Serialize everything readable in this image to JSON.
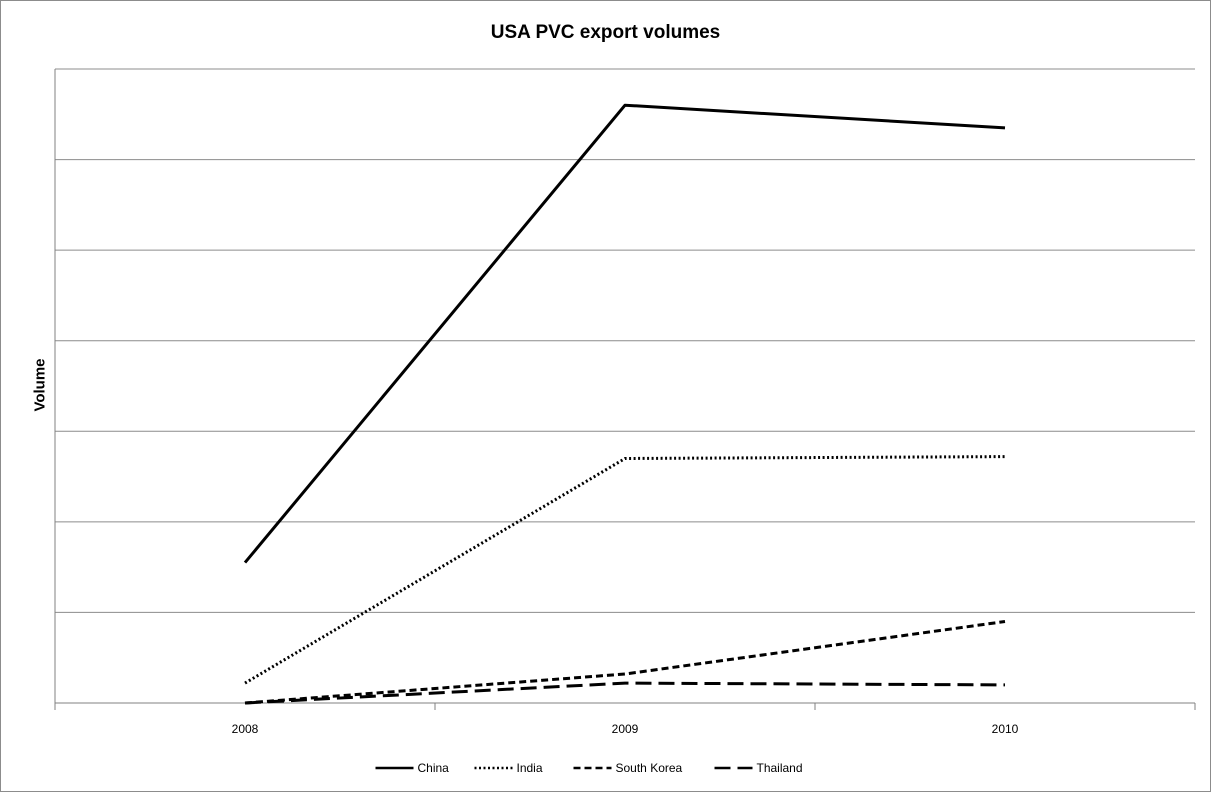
{
  "chart_data": {
    "type": "line",
    "title": "USA PVC export volumes",
    "xlabel": "",
    "ylabel": "Volume",
    "categories": [
      "2008",
      "2009",
      "2010"
    ],
    "ylim": [
      0,
      7
    ],
    "grid": true,
    "legend_position": "bottom",
    "series": [
      {
        "name": "China",
        "dash": "solid",
        "color": "#000000",
        "values": [
          1.55,
          6.6,
          6.35
        ]
      },
      {
        "name": "India",
        "dash": "dotted",
        "color": "#000000",
        "values": [
          0.22,
          2.7,
          2.72
        ]
      },
      {
        "name": "South Korea",
        "dash": "short-dash",
        "color": "#000000",
        "values": [
          0.0,
          0.32,
          0.9
        ]
      },
      {
        "name": "Thailand",
        "dash": "long-dash",
        "color": "#000000",
        "values": [
          0.0,
          0.22,
          0.2
        ]
      }
    ]
  }
}
